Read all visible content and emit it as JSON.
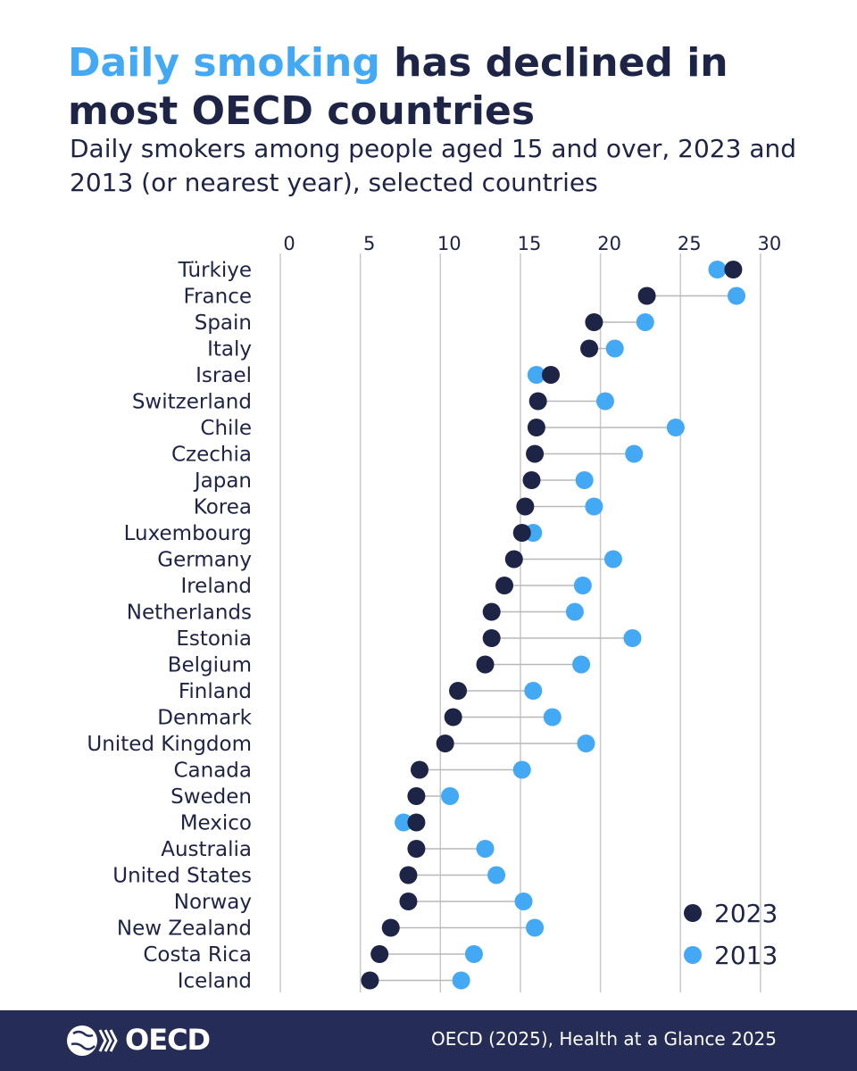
{
  "header": {
    "title_highlight": "Daily smoking",
    "title_rest": " has declined in most OECD countries",
    "subtitle": "Daily smokers among people aged 15 and over, 2023 and 2013 (or nearest year), selected countries"
  },
  "footer": {
    "logo_text": "OECD",
    "source": "OECD (2025), Health at a Glance 2025"
  },
  "colors": {
    "y2023": "#1d2445",
    "y2013": "#44a9f5",
    "connector": "#b8b8b8",
    "grid": "#c8c8c8",
    "footer_bg": "#252c55"
  },
  "chart_data": {
    "type": "scatter",
    "subtype": "dumbbell",
    "x_ticks": [
      0,
      5,
      10,
      15,
      20,
      25,
      30
    ],
    "xlim": [
      0,
      30
    ],
    "legend_position": "bottom-right",
    "grid": "vertical",
    "categories": [
      "Türkiye",
      "France",
      "Spain",
      "Italy",
      "Israel",
      "Switzerland",
      "Chile",
      "Czechia",
      "Japan",
      "Korea",
      "Luxembourg",
      "Germany",
      "Ireland",
      "Netherlands",
      "Estonia",
      "Belgium",
      "Finland",
      "Denmark",
      "United Kingdom",
      "Canada",
      "Sweden",
      "Mexico",
      "Australia",
      "United States",
      "Norway",
      "New Zealand",
      "Costa Rica",
      "Iceland"
    ],
    "series": [
      {
        "name": "2023",
        "values": [
          28.3,
          22.9,
          19.6,
          19.3,
          16.9,
          16.1,
          16.0,
          15.9,
          15.7,
          15.3,
          15.1,
          14.6,
          14.0,
          13.2,
          13.2,
          12.8,
          11.1,
          10.8,
          10.3,
          8.7,
          8.5,
          8.5,
          8.5,
          8.0,
          8.0,
          6.9,
          6.2,
          5.6
        ]
      },
      {
        "name": "2013",
        "values": [
          27.3,
          28.5,
          22.8,
          20.9,
          16.0,
          20.3,
          24.7,
          22.1,
          19.0,
          19.6,
          15.8,
          20.8,
          18.9,
          18.4,
          22.0,
          18.8,
          15.8,
          17.0,
          19.1,
          15.1,
          10.6,
          7.7,
          12.8,
          13.5,
          15.2,
          15.9,
          12.1,
          11.3
        ]
      }
    ]
  }
}
